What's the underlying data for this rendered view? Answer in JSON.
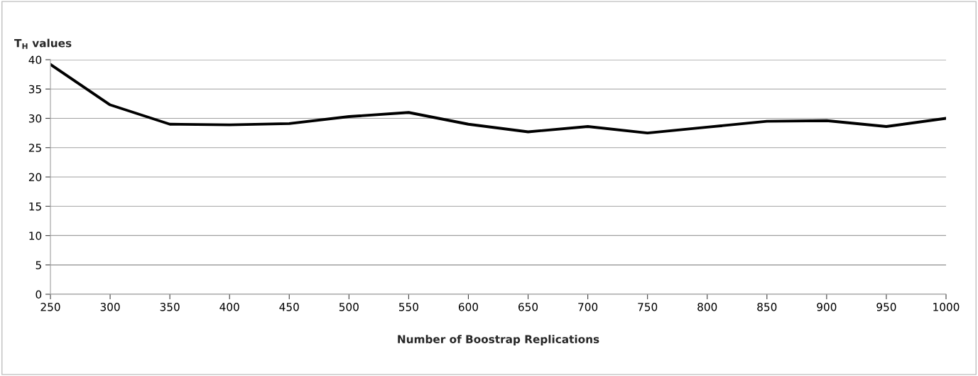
{
  "chart_data": {
    "type": "line",
    "ylabel": "T$_{H}$ values",
    "xlabel": "Number of Boostrap Replications",
    "x": [
      250,
      300,
      350,
      400,
      450,
      500,
      550,
      600,
      650,
      700,
      750,
      800,
      850,
      900,
      950,
      1000
    ],
    "series": [
      {
        "color": "#000000",
        "values": [
          39.2,
          32.3,
          29.0,
          28.9,
          29.1,
          30.3,
          31.0,
          29.0,
          27.7,
          28.6,
          27.5,
          28.5,
          29.5,
          29.6,
          28.6,
          30.0
        ]
      }
    ],
    "xlim": [
      250,
      1000
    ],
    "xticks": [
      250,
      300,
      350,
      400,
      450,
      500,
      550,
      600,
      650,
      700,
      750,
      800,
      850,
      900,
      950,
      1000
    ],
    "ylim": [
      0,
      40
    ],
    "yticks": [
      0,
      5,
      10,
      15,
      20,
      25,
      30,
      35,
      40
    ],
    "grid": "y",
    "marker": "none",
    "line_style": "solid"
  }
}
